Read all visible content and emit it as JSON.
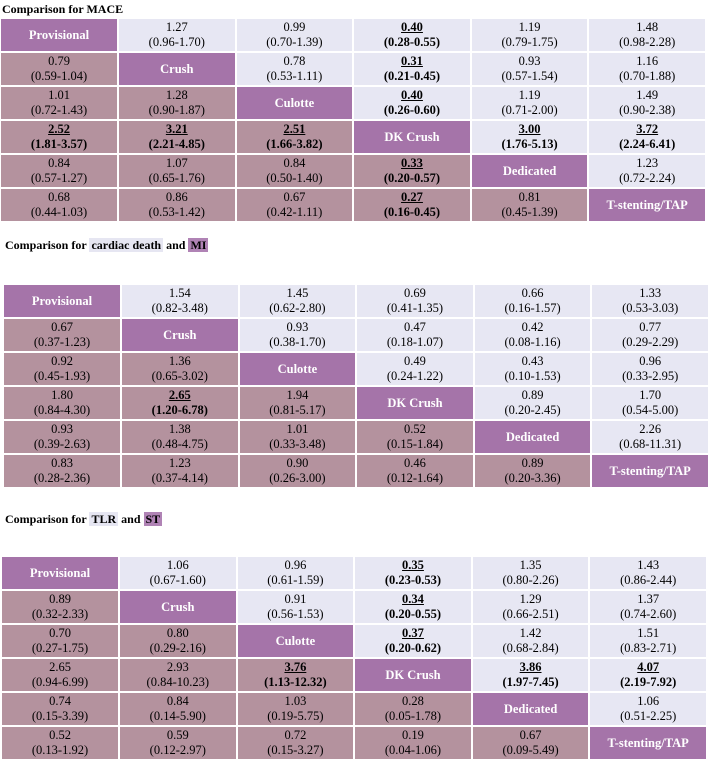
{
  "titles": {
    "mace": "Comparison for MACE",
    "cd_prefix": "Comparison for ",
    "cd_blue": "cardiac death",
    "cd_mid": " and ",
    "cd_purple": "MI",
    "tlr_prefix": "Comparison for ",
    "tlr_blue": "TLR",
    "tlr_mid": " and ",
    "tlr_purple": "ST"
  },
  "treatments": [
    "Provisional",
    "Crush",
    "Culotte",
    "DK Crush",
    "Dedicated",
    "T-stenting/TAP"
  ],
  "colors": {
    "diagonal": "#a574a9",
    "upper": "#e7e7f3",
    "lower": "#b4929e",
    "hl_blue": "#e6e6f2",
    "hl_purple": "#b083b5"
  },
  "tables": {
    "mace": [
      [
        null,
        {
          "v": "1.27",
          "ci": "(0.96-1.70)"
        },
        {
          "v": "0.99",
          "ci": "(0.70-1.39)"
        },
        {
          "v": "0.40",
          "ci": "(0.28-0.55)",
          "sig": true
        },
        {
          "v": "1.19",
          "ci": "(0.79-1.75)"
        },
        {
          "v": "1.48",
          "ci": "(0.98-2.28)"
        }
      ],
      [
        {
          "v": "0.79",
          "ci": "(0.59-1.04)"
        },
        null,
        {
          "v": "0.78",
          "ci": "(0.53-1.11)"
        },
        {
          "v": "0.31",
          "ci": "(0.21-0.45)",
          "sig": true
        },
        {
          "v": "0.93",
          "ci": "(0.57-1.54)"
        },
        {
          "v": "1.16",
          "ci": "(0.70-1.88)"
        }
      ],
      [
        {
          "v": "1.01",
          "ci": "(0.72-1.43)"
        },
        {
          "v": "1.28",
          "ci": "(0.90-1.87)"
        },
        null,
        {
          "v": "0.40",
          "ci": "(0.26-0.60)",
          "sig": true
        },
        {
          "v": "1.19",
          "ci": "(0.71-2.00)"
        },
        {
          "v": "1.49",
          "ci": "(0.90-2.38)"
        }
      ],
      [
        {
          "v": "2.52",
          "ci": "(1.81-3.57)",
          "sig": true
        },
        {
          "v": "3.21",
          "ci": "(2.21-4.85)",
          "sig": true
        },
        {
          "v": "2.51",
          "ci": "(1.66-3.82)",
          "sig": true
        },
        null,
        {
          "v": "3.00",
          "ci": "(1.76-5.13)",
          "sig": true
        },
        {
          "v": "3.72",
          "ci": "(2.24-6.41)",
          "sig": true
        }
      ],
      [
        {
          "v": "0.84",
          "ci": "(0.57-1.27)"
        },
        {
          "v": "1.07",
          "ci": "(0.65-1.76)"
        },
        {
          "v": "0.84",
          "ci": "(0.50-1.40)"
        },
        {
          "v": "0.33",
          "ci": "(0.20-0.57)",
          "sig": true
        },
        null,
        {
          "v": "1.23",
          "ci": "(0.72-2.24)"
        }
      ],
      [
        {
          "v": "0.68",
          "ci": "(0.44-1.03)"
        },
        {
          "v": "0.86",
          "ci": "(0.53-1.42)"
        },
        {
          "v": "0.67",
          "ci": "(0.42-1.11)"
        },
        {
          "v": "0.27",
          "ci": "(0.16-0.45)",
          "sig": true
        },
        {
          "v": "0.81",
          "ci": "(0.45-1.39)"
        },
        null
      ]
    ],
    "cd_mi": [
      [
        null,
        {
          "v": "1.54",
          "ci": "(0.82-3.48)"
        },
        {
          "v": "1.45",
          "ci": "(0.62-2.80)"
        },
        {
          "v": "0.69",
          "ci": "(0.41-1.35)"
        },
        {
          "v": "0.66",
          "ci": "(0.16-1.57)"
        },
        {
          "v": "1.33",
          "ci": "(0.53-3.03)"
        }
      ],
      [
        {
          "v": "0.67",
          "ci": "(0.37-1.23)"
        },
        null,
        {
          "v": "0.93",
          "ci": "(0.38-1.70)"
        },
        {
          "v": "0.47",
          "ci": "(0.18-1.07)"
        },
        {
          "v": "0.42",
          "ci": "(0.08-1.16)"
        },
        {
          "v": "0.77",
          "ci": "(0.29-2.29)"
        }
      ],
      [
        {
          "v": "0.92",
          "ci": "(0.45-1.93)"
        },
        {
          "v": "1.36",
          "ci": "(0.65-3.02)"
        },
        null,
        {
          "v": "0.49",
          "ci": "(0.24-1.22)"
        },
        {
          "v": "0.43",
          "ci": "(0.10-1.53)"
        },
        {
          "v": "0.96",
          "ci": "(0.33-2.95)"
        }
      ],
      [
        {
          "v": "1.80",
          "ci": "(0.84-4.30)"
        },
        {
          "v": "2.65",
          "ci": "(1.20-6.78)",
          "sig": true
        },
        {
          "v": "1.94",
          "ci": "(0.81-5.17)"
        },
        null,
        {
          "v": "0.89",
          "ci": "(0.20-2.45)"
        },
        {
          "v": "1.70",
          "ci": "(0.54-5.00)"
        }
      ],
      [
        {
          "v": "0.93",
          "ci": "(0.39-2.63)"
        },
        {
          "v": "1.38",
          "ci": "(0.48-4.75)"
        },
        {
          "v": "1.01",
          "ci": "(0.33-3.48)"
        },
        {
          "v": "0.52",
          "ci": "(0.15-1.84)"
        },
        null,
        {
          "v": "2.26",
          "ci": "(0.68-11.31)"
        }
      ],
      [
        {
          "v": "0.83",
          "ci": "(0.28-2.36)"
        },
        {
          "v": "1.23",
          "ci": "(0.37-4.14)"
        },
        {
          "v": "0.90",
          "ci": "(0.26-3.00)"
        },
        {
          "v": "0.46",
          "ci": "(0.12-1.64)"
        },
        {
          "v": "0.89",
          "ci": "(0.20-3.36)"
        },
        null
      ]
    ],
    "tlr_st": [
      [
        null,
        {
          "v": "1.06",
          "ci": "(0.67-1.60)"
        },
        {
          "v": "0.96",
          "ci": "(0.61-1.59)"
        },
        {
          "v": "0.35",
          "ci": "(0.23-0.53)",
          "sig": true
        },
        {
          "v": "1.35",
          "ci": "(0.80-2.26)"
        },
        {
          "v": "1.43",
          "ci": "(0.86-2.44)"
        }
      ],
      [
        {
          "v": "0.89",
          "ci": "(0.32-2.33)"
        },
        null,
        {
          "v": "0.91",
          "ci": "(0.56-1.53)"
        },
        {
          "v": "0.34",
          "ci": "(0.20-0.55)",
          "sig": true
        },
        {
          "v": "1.29",
          "ci": "(0.66-2.51)"
        },
        {
          "v": "1.37",
          "ci": "(0.74-2.60)"
        }
      ],
      [
        {
          "v": "0.70",
          "ci": "(0.27-1.75)"
        },
        {
          "v": "0.80",
          "ci": "(0.29-2.16)"
        },
        null,
        {
          "v": "0.37",
          "ci": "(0.20-0.62)",
          "sig": true
        },
        {
          "v": "1.42",
          "ci": "(0.68-2.84)"
        },
        {
          "v": "1.51",
          "ci": "(0.83-2.71)"
        }
      ],
      [
        {
          "v": "2.65",
          "ci": "(0.94-6.99)"
        },
        {
          "v": "2.93",
          "ci": "(0.84-10.23)"
        },
        {
          "v": "3.76",
          "ci": "(1.13-12.32)",
          "sig": true
        },
        null,
        {
          "v": "3.86",
          "ci": "(1.97-7.45)",
          "sig": true
        },
        {
          "v": "4.07",
          "ci": "(2.19-7.92)",
          "sig": true
        }
      ],
      [
        {
          "v": "0.74",
          "ci": "(0.15-3.39)"
        },
        {
          "v": "0.84",
          "ci": "(0.14-5.90)"
        },
        {
          "v": "1.03",
          "ci": "(0.19-5.75)"
        },
        {
          "v": "0.28",
          "ci": "(0.05-1.78)"
        },
        null,
        {
          "v": "1.06",
          "ci": "(0.51-2.25)"
        }
      ],
      [
        {
          "v": "0.52",
          "ci": "(0.13-1.92)"
        },
        {
          "v": "0.59",
          "ci": "(0.12-2.97)"
        },
        {
          "v": "0.72",
          "ci": "(0.15-3.27)"
        },
        {
          "v": "0.19",
          "ci": "(0.04-1.06)"
        },
        {
          "v": "0.67",
          "ci": "(0.09-5.49)"
        },
        null
      ]
    ]
  }
}
